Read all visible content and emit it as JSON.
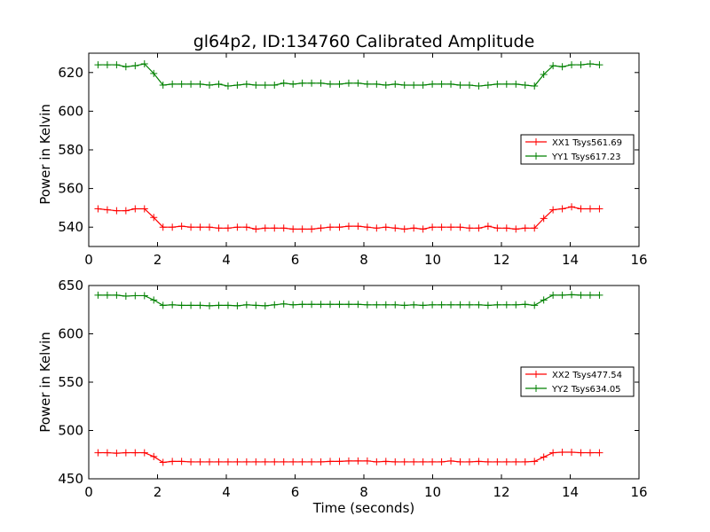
{
  "chart_data": [
    {
      "type": "line",
      "title": "gl64p2, ID:134760 Calibrated Amplitude",
      "xlabel": "",
      "ylabel": "Power in Kelvin",
      "xlim": [
        0,
        16
      ],
      "ylim": [
        530,
        630
      ],
      "xticks": [
        0,
        2,
        4,
        6,
        8,
        10,
        12,
        14,
        16
      ],
      "yticks": [
        540,
        560,
        580,
        600,
        620
      ],
      "legend_position": "center-right",
      "x": [
        0.27,
        0.54,
        0.81,
        1.08,
        1.35,
        1.62,
        1.89,
        2.16,
        2.43,
        2.7,
        2.97,
        3.24,
        3.51,
        3.78,
        4.05,
        4.32,
        4.59,
        4.86,
        5.13,
        5.4,
        5.67,
        5.94,
        6.21,
        6.48,
        6.75,
        7.02,
        7.29,
        7.56,
        7.83,
        8.1,
        8.37,
        8.64,
        8.91,
        9.18,
        9.45,
        9.72,
        9.99,
        10.26,
        10.53,
        10.8,
        11.07,
        11.34,
        11.61,
        11.88,
        12.15,
        12.42,
        12.69,
        12.96,
        13.23,
        13.5,
        13.77,
        14.04,
        14.31,
        14.58,
        14.85
      ],
      "series": [
        {
          "name": "XX1 Tsys561.69",
          "color": "#ff0000",
          "values": [
            549.5,
            549.0,
            548.5,
            548.5,
            549.5,
            549.5,
            545.0,
            540.0,
            540.0,
            540.5,
            540.0,
            540.0,
            540.0,
            539.5,
            539.5,
            540.0,
            540.0,
            539.0,
            539.5,
            539.5,
            539.5,
            539.0,
            539.0,
            539.0,
            539.5,
            540.0,
            540.0,
            540.5,
            540.5,
            540.0,
            539.5,
            540.0,
            539.5,
            539.0,
            539.5,
            539.0,
            540.0,
            540.0,
            540.0,
            540.0,
            539.5,
            539.5,
            540.5,
            539.5,
            539.5,
            539.0,
            539.5,
            539.5,
            544.5,
            549.0,
            549.5,
            550.5,
            549.5,
            549.5,
            549.5
          ]
        },
        {
          "name": "YY1 Tsys617.23",
          "color": "#008000",
          "values": [
            624.0,
            624.0,
            624.0,
            623.0,
            623.5,
            624.5,
            619.5,
            613.5,
            614.0,
            614.0,
            614.0,
            614.0,
            613.5,
            614.0,
            613.0,
            613.5,
            614.0,
            613.5,
            613.5,
            613.5,
            614.5,
            614.0,
            614.5,
            614.5,
            614.5,
            614.0,
            614.0,
            614.5,
            614.5,
            614.0,
            614.0,
            613.5,
            614.0,
            613.5,
            613.5,
            613.5,
            614.0,
            614.0,
            614.0,
            613.5,
            613.5,
            613.0,
            613.5,
            614.0,
            614.0,
            614.0,
            613.5,
            613.0,
            619.0,
            623.5,
            623.0,
            624.0,
            624.0,
            624.5,
            624.0
          ]
        }
      ]
    },
    {
      "type": "line",
      "title": "",
      "xlabel": "Time (seconds)",
      "ylabel": "Power in Kelvin",
      "xlim": [
        0,
        16
      ],
      "ylim": [
        450,
        650
      ],
      "xticks": [
        0,
        2,
        4,
        6,
        8,
        10,
        12,
        14,
        16
      ],
      "yticks": [
        450,
        500,
        550,
        600,
        650
      ],
      "legend_position": "center-right",
      "x": [
        0.27,
        0.54,
        0.81,
        1.08,
        1.35,
        1.62,
        1.89,
        2.16,
        2.43,
        2.7,
        2.97,
        3.24,
        3.51,
        3.78,
        4.05,
        4.32,
        4.59,
        4.86,
        5.13,
        5.4,
        5.67,
        5.94,
        6.21,
        6.48,
        6.75,
        7.02,
        7.29,
        7.56,
        7.83,
        8.1,
        8.37,
        8.64,
        8.91,
        9.18,
        9.45,
        9.72,
        9.99,
        10.26,
        10.53,
        10.8,
        11.07,
        11.34,
        11.61,
        11.88,
        12.15,
        12.42,
        12.69,
        12.96,
        13.23,
        13.5,
        13.77,
        14.04,
        14.31,
        14.58,
        14.85
      ],
      "series": [
        {
          "name": "XX2 Tsys477.54",
          "color": "#ff0000",
          "values": [
            477,
            477,
            476.5,
            477,
            477,
            477,
            473,
            467,
            468,
            468,
            467.5,
            467.5,
            467.5,
            467.5,
            467.5,
            467.5,
            467.5,
            467.5,
            467.5,
            467.5,
            467.5,
            467.5,
            467.5,
            467.5,
            467.5,
            468,
            468,
            468.5,
            468.5,
            468.5,
            467.5,
            468,
            467.5,
            467.5,
            467.5,
            467.5,
            467.5,
            467.5,
            468.5,
            467.5,
            467.5,
            468,
            467.5,
            467.5,
            467.5,
            467.5,
            467.5,
            468,
            472.5,
            477,
            477.5,
            477.5,
            477,
            477,
            477
          ]
        },
        {
          "name": "YY2 Tsys634.05",
          "color": "#008000",
          "values": [
            640,
            640,
            640,
            639,
            639.5,
            639.5,
            635,
            629.5,
            630,
            629.5,
            629.5,
            629.5,
            629,
            629.5,
            629.5,
            629,
            630,
            629.5,
            629,
            630,
            631,
            630,
            630.5,
            630.5,
            630.5,
            630.5,
            630.5,
            630.5,
            630.5,
            630,
            630,
            630,
            630,
            629.5,
            630,
            629.5,
            630,
            630,
            630,
            630,
            630,
            630,
            629.5,
            630,
            630,
            630,
            630.5,
            629.5,
            635,
            640,
            640,
            640.5,
            640,
            640,
            640
          ]
        }
      ]
    }
  ]
}
